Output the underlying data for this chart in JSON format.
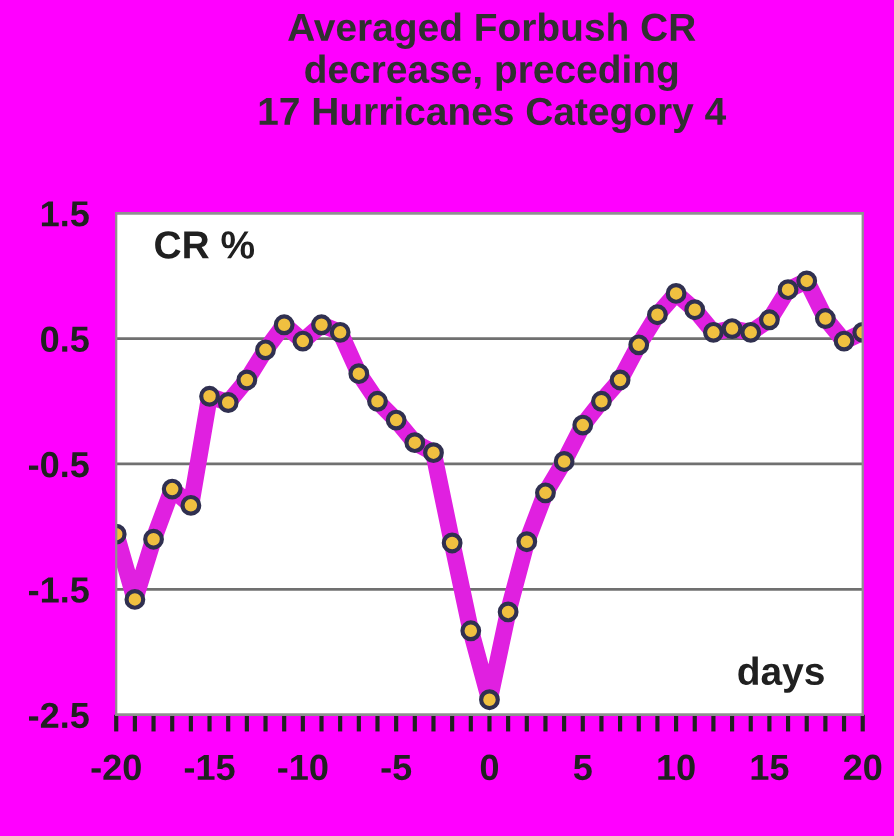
{
  "chart_data": {
    "type": "line",
    "title": "Averaged Forbush CR\ndecrease, preceding\n17 Hurricanes Category 4",
    "x": [
      -20,
      -19,
      -18,
      -17,
      -16,
      -15,
      -14,
      -13,
      -12,
      -11,
      -10,
      -9,
      -8,
      -7,
      -6,
      -5,
      -4,
      -3,
      -2,
      -1,
      0,
      1,
      2,
      3,
      4,
      5,
      6,
      7,
      8,
      9,
      10,
      11,
      12,
      13,
      14,
      15,
      16,
      17,
      18,
      19,
      20
    ],
    "series": [
      {
        "color": "#e020e0",
        "values": [
          -1.06,
          -1.58,
          -1.1,
          -0.7,
          -0.83,
          0.04,
          -0.01,
          0.17,
          0.41,
          0.61,
          0.48,
          0.61,
          0.55,
          0.22,
          0.0,
          -0.15,
          -0.33,
          -0.41,
          -1.13,
          -1.83,
          -2.38,
          -1.68,
          -1.12,
          -0.73,
          -0.48,
          -0.19,
          0.0,
          0.17,
          0.45,
          0.69,
          0.86,
          0.73,
          0.55,
          0.58,
          0.55,
          0.65,
          0.89,
          0.96,
          0.66,
          0.48,
          0.55
        ]
      }
    ],
    "marker": "circle",
    "line_style": "solid",
    "xlim": [
      -20,
      20
    ],
    "ylim": [
      -2.5,
      1.5
    ],
    "xticks": [
      -20,
      {
        "value": -19,
        "label": null
      },
      {
        "value": -18,
        "label": null
      },
      {
        "value": -17,
        "label": null
      },
      {
        "value": -16,
        "label": null
      },
      -15,
      {
        "value": -14,
        "label": null
      },
      {
        "value": -13,
        "label": null
      },
      {
        "value": -12,
        "label": null
      },
      {
        "value": -11,
        "label": null
      },
      -10,
      {
        "value": -9,
        "label": null
      },
      {
        "value": -8,
        "label": null
      },
      {
        "value": -7,
        "label": null
      },
      {
        "value": -6,
        "label": null
      },
      -5,
      {
        "value": -4,
        "label": null
      },
      {
        "value": -3,
        "label": null
      },
      {
        "value": -2,
        "label": null
      },
      {
        "value": -1,
        "label": null
      },
      0,
      {
        "value": 1,
        "label": null
      },
      {
        "value": 2,
        "label": null
      },
      {
        "value": 3,
        "label": null
      },
      {
        "value": 4,
        "label": null
      },
      5,
      {
        "value": 6,
        "label": null
      },
      {
        "value": 7,
        "label": null
      },
      {
        "value": 8,
        "label": null
      },
      {
        "value": 9,
        "label": null
      },
      10,
      {
        "value": 11,
        "label": null
      },
      {
        "value": 12,
        "label": null
      },
      {
        "value": 13,
        "label": null
      },
      {
        "value": 14,
        "label": null
      },
      15,
      {
        "value": 16,
        "label": null
      },
      {
        "value": 17,
        "label": null
      },
      {
        "value": 18,
        "label": null
      },
      {
        "value": 19,
        "label": null
      },
      20
    ],
    "yticks": [
      1.5,
      0.5,
      -0.5,
      -1.5,
      -2.5
    ],
    "grid": "y",
    "annotations": [
      "CR %",
      "days"
    ]
  }
}
